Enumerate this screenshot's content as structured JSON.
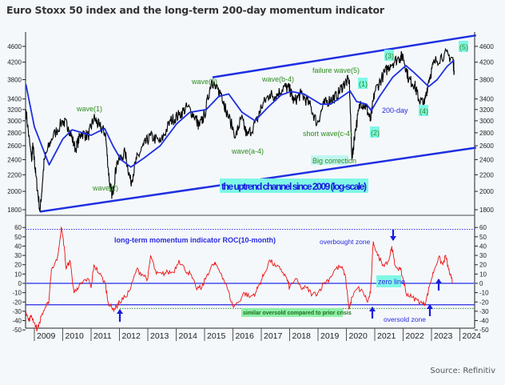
{
  "title": "Euro Stoxx 50 index and the long-term 200-day momentum indicator",
  "source": "Source: Refinitiv",
  "colors": {
    "price": "#000000",
    "ma": "#1f2fe0",
    "channel": "#1f2fe0",
    "roc": "#ee1111",
    "wave_label": "#2e8b1e",
    "highlight_cyan": "#7ff7e6",
    "highlight_green": "#8ef0a8",
    "background": "#f4f8fb"
  },
  "chart_data": [
    {
      "type": "line",
      "scale": "log",
      "ylim": [
        1700,
        5000
      ],
      "yticks": [
        1800,
        2000,
        2200,
        2400,
        2600,
        2800,
        3000,
        3200,
        3400,
        3800,
        4200,
        4600
      ],
      "grid": false,
      "series": [
        {
          "name": "Euro Stoxx 50",
          "points": [
            [
              2008.7,
              3200
            ],
            [
              2008.9,
              2400
            ],
            [
              2008.95,
              2600
            ],
            [
              2009.05,
              2200
            ],
            [
              2009.2,
              1780
            ],
            [
              2009.35,
              2400
            ],
            [
              2009.6,
              2700
            ],
            [
              2010.0,
              3000
            ],
            [
              2010.2,
              2900
            ],
            [
              2010.45,
              2550
            ],
            [
              2010.65,
              2800
            ],
            [
              2010.9,
              2750
            ],
            [
              2011.1,
              3050
            ],
            [
              2011.3,
              2900
            ],
            [
              2011.5,
              2800
            ],
            [
              2011.65,
              2100
            ],
            [
              2011.75,
              1950
            ],
            [
              2011.9,
              2350
            ],
            [
              2012.2,
              2500
            ],
            [
              2012.4,
              2100
            ],
            [
              2012.6,
              2400
            ],
            [
              2012.85,
              2600
            ],
            [
              2013.1,
              2750
            ],
            [
              2013.45,
              2650
            ],
            [
              2013.8,
              3000
            ],
            [
              2014.1,
              3100
            ],
            [
              2014.4,
              3250
            ],
            [
              2014.7,
              3050
            ],
            [
              2014.8,
              2900
            ],
            [
              2015.0,
              3100
            ],
            [
              2015.25,
              3800
            ],
            [
              2015.4,
              3600
            ],
            [
              2015.6,
              3500
            ],
            [
              2015.75,
              3200
            ],
            [
              2016.1,
              2750
            ],
            [
              2016.3,
              3050
            ],
            [
              2016.5,
              2750
            ],
            [
              2016.85,
              3000
            ],
            [
              2017.0,
              3250
            ],
            [
              2017.3,
              3500
            ],
            [
              2017.5,
              3450
            ],
            [
              2017.8,
              3650
            ],
            [
              2018.0,
              3600
            ],
            [
              2018.15,
              3350
            ],
            [
              2018.4,
              3500
            ],
            [
              2018.7,
              3300
            ],
            [
              2018.97,
              2950
            ],
            [
              2019.2,
              3300
            ],
            [
              2019.45,
              3400
            ],
            [
              2019.65,
              3450
            ],
            [
              2019.9,
              3700
            ],
            [
              2020.1,
              3800
            ],
            [
              2020.2,
              2400
            ],
            [
              2020.3,
              2800
            ],
            [
              2020.5,
              3350
            ],
            [
              2020.7,
              3250
            ],
            [
              2020.85,
              3000
            ],
            [
              2021.0,
              3550
            ],
            [
              2021.3,
              3900
            ],
            [
              2021.55,
              4150
            ],
            [
              2021.85,
              4300
            ],
            [
              2022.0,
              4350
            ],
            [
              2022.2,
              3800
            ],
            [
              2022.4,
              3700
            ],
            [
              2022.55,
              3400
            ],
            [
              2022.75,
              3300
            ],
            [
              2022.9,
              3800
            ],
            [
              2023.1,
              4200
            ],
            [
              2023.45,
              4400
            ],
            [
              2023.75,
              4300
            ],
            [
              2023.8,
              4000
            ]
          ]
        },
        {
          "name": "200-day",
          "points": [
            [
              2008.7,
              3700
            ],
            [
              2009.0,
              2900
            ],
            [
              2009.52,
              2330
            ],
            [
              2010.0,
              2700
            ],
            [
              2010.33,
              2850
            ],
            [
              2011.0,
              2760
            ],
            [
              2011.48,
              2870
            ],
            [
              2011.77,
              2600
            ],
            [
              2012.05,
              2400
            ],
            [
              2012.4,
              2300
            ],
            [
              2012.86,
              2420
            ],
            [
              2013.44,
              2600
            ],
            [
              2014.02,
              2950
            ],
            [
              2014.48,
              3150
            ],
            [
              2015.06,
              3200
            ],
            [
              2015.5,
              3450
            ],
            [
              2015.85,
              3500
            ],
            [
              2016.32,
              3150
            ],
            [
              2016.78,
              3000
            ],
            [
              2017.25,
              3250
            ],
            [
              2017.7,
              3480
            ],
            [
              2018.05,
              3550
            ],
            [
              2018.5,
              3500
            ],
            [
              2019.1,
              3300
            ],
            [
              2019.44,
              3300
            ],
            [
              2019.78,
              3420
            ],
            [
              2020.13,
              3560
            ],
            [
              2020.36,
              3350
            ],
            [
              2020.71,
              3300
            ],
            [
              2020.88,
              3180
            ],
            [
              2021.17,
              3450
            ],
            [
              2021.63,
              3850
            ],
            [
              2022.1,
              4120
            ],
            [
              2022.4,
              3950
            ],
            [
              2022.9,
              3650
            ],
            [
              2023.2,
              3800
            ],
            [
              2023.55,
              4100
            ],
            [
              2023.8,
              4250
            ]
          ]
        }
      ],
      "channel": {
        "lower": [
          [
            2009.2,
            1780
          ],
          [
            2024.57,
            2570
          ]
        ],
        "upper": [
          [
            2015.28,
            3850
          ],
          [
            2024.57,
            4900
          ]
        ]
      },
      "annotations": {
        "wave1": "wave(1)",
        "wave2": "wave(2)",
        "wave3": "wave(3)",
        "wave_a4": "wave(a-4)",
        "wave_b4": "wave(b-4)",
        "failure_wave5": "failure wave(5)",
        "short_wave_c4": "short wave(c-4)",
        "big_correction": "Big correction",
        "w1": "(1)",
        "w2": "(2)",
        "w3": "(3)",
        "w4": "(4)",
        "w5": "(5)",
        "ma_label": "200-day",
        "channel_label": "the uptrend channel since 2009 (log-scale)"
      }
    },
    {
      "type": "line",
      "ylim": [
        -57,
        62
      ],
      "yticks": [
        60,
        50,
        40,
        30,
        20,
        10,
        0,
        -10,
        -20,
        -30,
        -40,
        -50
      ],
      "grid": false,
      "series": [
        {
          "name": "long-term momentum indicator ROC(10-month)",
          "points": [
            [
              2008.7,
              -30
            ],
            [
              2008.8,
              -40
            ],
            [
              2008.9,
              -35
            ],
            [
              2009.0,
              -42
            ],
            [
              2009.1,
              -50
            ],
            [
              2009.25,
              -35
            ],
            [
              2009.4,
              -25
            ],
            [
              2009.5,
              -22
            ],
            [
              2009.6,
              15
            ],
            [
              2009.8,
              25
            ],
            [
              2009.95,
              60
            ],
            [
              2010.05,
              40
            ],
            [
              2010.12,
              15
            ],
            [
              2010.25,
              25
            ],
            [
              2010.4,
              -10
            ],
            [
              2010.5,
              -5
            ],
            [
              2010.7,
              0
            ],
            [
              2010.9,
              5
            ],
            [
              2011.0,
              -5
            ],
            [
              2011.1,
              20
            ],
            [
              2011.3,
              10
            ],
            [
              2011.5,
              0
            ],
            [
              2011.6,
              -20
            ],
            [
              2011.75,
              -28
            ],
            [
              2011.9,
              -25
            ],
            [
              2012.0,
              -20
            ],
            [
              2012.2,
              -15
            ],
            [
              2012.4,
              -5
            ],
            [
              2012.6,
              15
            ],
            [
              2012.8,
              10
            ],
            [
              2013.0,
              5
            ],
            [
              2013.1,
              30
            ],
            [
              2013.3,
              10
            ],
            [
              2013.5,
              10
            ],
            [
              2013.7,
              12
            ],
            [
              2013.9,
              12
            ],
            [
              2014.1,
              25
            ],
            [
              2014.3,
              15
            ],
            [
              2014.5,
              10
            ],
            [
              2014.7,
              -5
            ],
            [
              2014.9,
              -5
            ],
            [
              2015.1,
              10
            ],
            [
              2015.3,
              20
            ],
            [
              2015.4,
              20
            ],
            [
              2015.6,
              10
            ],
            [
              2015.8,
              -5
            ],
            [
              2016.0,
              -25
            ],
            [
              2016.2,
              -20
            ],
            [
              2016.4,
              -10
            ],
            [
              2016.6,
              -15
            ],
            [
              2016.8,
              -10
            ],
            [
              2016.95,
              0
            ],
            [
              2017.1,
              10
            ],
            [
              2017.3,
              25
            ],
            [
              2017.5,
              18
            ],
            [
              2017.7,
              15
            ],
            [
              2017.9,
              5
            ],
            [
              2018.0,
              -5
            ],
            [
              2018.2,
              5
            ],
            [
              2018.4,
              -5
            ],
            [
              2018.6,
              -5
            ],
            [
              2018.8,
              -12
            ],
            [
              2019.0,
              -10
            ],
            [
              2019.2,
              0
            ],
            [
              2019.4,
              5
            ],
            [
              2019.6,
              15
            ],
            [
              2019.8,
              18
            ],
            [
              2019.95,
              10
            ],
            [
              2020.1,
              -28
            ],
            [
              2020.2,
              -15
            ],
            [
              2020.4,
              -5
            ],
            [
              2020.6,
              -10
            ],
            [
              2020.75,
              -20
            ],
            [
              2020.85,
              -10
            ],
            [
              2020.95,
              45
            ],
            [
              2021.1,
              30
            ],
            [
              2021.3,
              20
            ],
            [
              2021.5,
              25
            ],
            [
              2021.6,
              40
            ],
            [
              2021.7,
              20
            ],
            [
              2021.9,
              15
            ],
            [
              2022.0,
              5
            ],
            [
              2022.1,
              -10
            ],
            [
              2022.3,
              -15
            ],
            [
              2022.5,
              -18
            ],
            [
              2022.7,
              -22
            ],
            [
              2022.8,
              -20
            ],
            [
              2022.95,
              0
            ],
            [
              2023.1,
              15
            ],
            [
              2023.25,
              28
            ],
            [
              2023.4,
              20
            ],
            [
              2023.5,
              30
            ],
            [
              2023.6,
              15
            ],
            [
              2023.7,
              5
            ],
            [
              2023.75,
              0
            ]
          ]
        }
      ],
      "reference_lines": {
        "overbought": 58,
        "zero": 0,
        "oversold": -23,
        "prior_crisis": -27
      },
      "annotations": {
        "indicator_label": "long-term momentum indicator ROC(10-month)",
        "overbought_zone": "overbought zone",
        "zero_line": "zero line",
        "similar_oversold": "similar oversold compared to prior crisis",
        "oversold_zone": "oversold zone"
      }
    }
  ],
  "x_axis": {
    "ticks": [
      "2009",
      "2010",
      "2011",
      "2012",
      "2013",
      "2014",
      "2015",
      "2016",
      "2017",
      "2018",
      "2019",
      "2020",
      "2021",
      "2022",
      "2023",
      "2024"
    ]
  }
}
